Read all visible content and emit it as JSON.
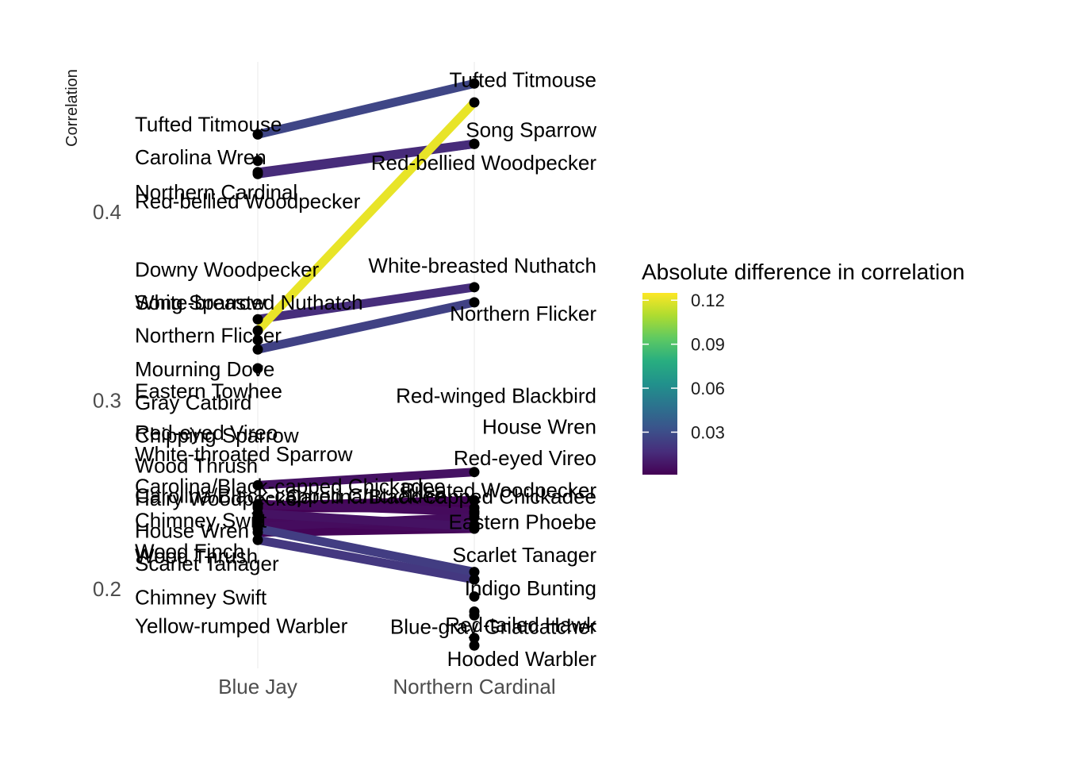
{
  "chart_data": {
    "type": "line",
    "subtype": "slopegraph",
    "categories": [
      "Blue Jay",
      "Northern Cardinal"
    ],
    "xlabel": "",
    "ylabel": "Correlation",
    "ylim": [
      0.14,
      0.48
    ],
    "yticks": [
      0.2,
      0.3,
      0.4
    ],
    "grid": true,
    "legend": {
      "title": "Absolute difference in correlation",
      "placement": "right",
      "ticks": [
        0.03,
        0.06,
        0.09,
        0.12
      ],
      "range": [
        0.001,
        0.125
      ]
    },
    "series": [
      {
        "name": "Tufted Titmouse",
        "values": [
          0.441,
          0.468
        ]
      },
      {
        "name": "Carolina Wren",
        "values": [
          0.421,
          0.436
        ]
      },
      {
        "name": "Northern Cardinal",
        "values": [
          0.427,
          null
        ]
      },
      {
        "name": "Red-bellied Woodpecker",
        "values": [
          0.42,
          0.436
        ]
      },
      {
        "name": "Song Sparrow",
        "values": [
          0.337,
          0.458
        ]
      },
      {
        "name": "White-breasted Nuthatch",
        "values": [
          0.343,
          0.36
        ]
      },
      {
        "name": "Northern Flicker",
        "values": [
          0.327,
          0.352
        ]
      },
      {
        "name": "Downy Woodpecker",
        "values": [
          0.332,
          null
        ]
      },
      {
        "name": "Mourning Dove",
        "values": [
          0.317,
          null
        ]
      },
      {
        "name": "Red-eyed Vireo",
        "values": [
          0.255,
          0.262
        ]
      },
      {
        "name": "Wood Thrush",
        "values": [
          0.245,
          0.241
        ]
      },
      {
        "name": "Carolina/Black-capped Chickadee",
        "values": [
          0.243,
          0.243
        ]
      },
      {
        "name": "Hairy Woodpecker",
        "values": [
          0.244,
          0.247
        ]
      },
      {
        "name": "House Wren",
        "values": [
          0.236,
          0.232
        ]
      },
      {
        "name": "Chimney Swift",
        "values": [
          0.233,
          0.238
        ]
      },
      {
        "name": "Scarlet Tanager",
        "values": [
          0.23,
          0.232
        ]
      },
      {
        "name": "Eastern Phoebe",
        "values": [
          0.24,
          0.233
        ]
      },
      {
        "name": "Indigo Bunting",
        "values": [
          0.232,
          0.209
        ]
      },
      {
        "name": "Gray Catbird",
        "values": [
          0.226,
          0.205
        ]
      },
      {
        "name": "Eastern Towhee",
        "values": [
          0.239,
          null
        ]
      },
      {
        "name": "Red-winged Blackbird",
        "values": [
          null,
          0.247
        ]
      },
      {
        "name": "Chipping Sparrow",
        "values": [
          null,
          0.24
        ]
      },
      {
        "name": "White-throated Sparrow",
        "values": [
          null,
          0.234
        ]
      },
      {
        "name": "Yellow-rumped Warbler",
        "values": [
          null,
          0.186
        ]
      },
      {
        "name": "Wood Finch",
        "values": [
          null,
          0.196
        ]
      },
      {
        "name": "Red-tailed Hawk",
        "values": [
          null,
          0.188
        ]
      },
      {
        "name": "Blue-gray Gnatcatcher",
        "values": [
          null,
          0.174
        ]
      },
      {
        "name": "Hooded Warbler",
        "values": [
          null,
          0.17
        ]
      }
    ],
    "labels_left": [
      {
        "text": "Tufted Titmouse",
        "y": 0.4465
      },
      {
        "text": "Carolina Wren",
        "y": 0.429
      },
      {
        "text": "Northern Cardinal",
        "y": 0.4105
      },
      {
        "text": "Red-bellied Woodpecker",
        "y": 0.4055
      },
      {
        "text": "Downy Woodpecker",
        "y": 0.3695
      },
      {
        "text": "Song Sparrow",
        "y": 0.352
      },
      {
        "text": "White-breasted Nuthatch",
        "y": 0.352
      },
      {
        "text": "Northern Flicker",
        "y": 0.3345
      },
      {
        "text": "Mourning Dove",
        "y": 0.3165
      },
      {
        "text": "Eastern Towhee",
        "y": 0.305
      },
      {
        "text": "Gray Catbird",
        "y": 0.299
      },
      {
        "text": "Red-eyed Vireo",
        "y": 0.283
      },
      {
        "text": "Chipping Sparrow",
        "y": 0.2815
      },
      {
        "text": "White-throated Sparrow",
        "y": 0.2715
      },
      {
        "text": "Wood Thrush",
        "y": 0.2655
      },
      {
        "text": "Carolina/Black-capped Chickadee",
        "y": 0.2545
      },
      {
        "text": "Hairy Woodpecker",
        "y": 0.248
      },
      {
        "text": "Carolina/Black-capped Chickadee",
        "y": 0.2495
      },
      {
        "text": "Chimney Swift",
        "y": 0.2365
      },
      {
        "text": "House Wren",
        "y": 0.231
      },
      {
        "text": "Wood Finch",
        "y": 0.22
      },
      {
        "text": "Wood Thrush",
        "y": 0.2175
      },
      {
        "text": "Scarlet Tanager",
        "y": 0.2135
      },
      {
        "text": "Chimney Swift",
        "y": 0.1955
      },
      {
        "text": "Yellow-rumped Warbler",
        "y": 0.1805
      }
    ],
    "labels_right": [
      {
        "text": "Tufted Titmouse",
        "y": 0.47
      },
      {
        "text": "Song Sparrow",
        "y": 0.4435
      },
      {
        "text": "Red-bellied Woodpecker",
        "y": 0.426
      },
      {
        "text": "White-breasted Nuthatch",
        "y": 0.3715
      },
      {
        "text": "Northern Flicker",
        "y": 0.346
      },
      {
        "text": "Red-winged Blackbird",
        "y": 0.3025
      },
      {
        "text": "House Wren",
        "y": 0.286
      },
      {
        "text": "Red-eyed Vireo",
        "y": 0.2695
      },
      {
        "text": "Pileated Woodpecker",
        "y": 0.2525
      },
      {
        "text": "Carolina/Black-capped Chickadee",
        "y": 0.249
      },
      {
        "text": "Eastern Phoebe",
        "y": 0.2355
      },
      {
        "text": "Scarlet Tanager",
        "y": 0.218
      },
      {
        "text": "Indigo Bunting",
        "y": 0.2005
      },
      {
        "text": "Red-tailed Hawk",
        "y": 0.181
      },
      {
        "text": "Blue-gray Gnatcatcher",
        "y": 0.18
      },
      {
        "text": "Hooded Warbler",
        "y": 0.163
      }
    ]
  }
}
